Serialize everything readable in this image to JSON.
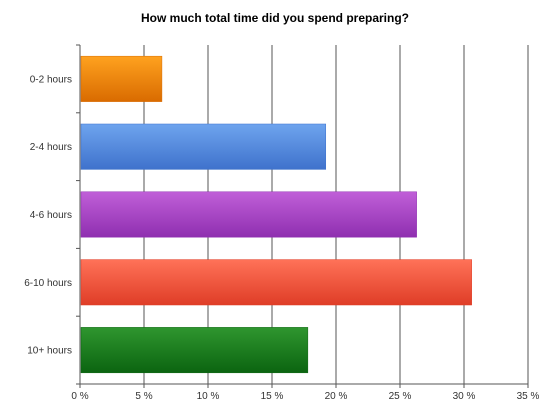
{
  "chart_data": {
    "type": "bar",
    "orientation": "horizontal",
    "title": "How much total time did you spend preparing?",
    "xlabel": "",
    "ylabel": "",
    "categories": [
      "0-2 hours",
      "2-4 hours",
      "4-6 hours",
      "6-10 hours",
      "10+ hours"
    ],
    "values": [
      6.4,
      19.2,
      26.3,
      30.6,
      17.8
    ],
    "value_unit": "%",
    "xlim": [
      0,
      35
    ],
    "x_ticks": [
      0,
      5,
      10,
      15,
      20,
      25,
      30,
      35
    ],
    "x_tick_labels": [
      "0 %",
      "5 %",
      "10 %",
      "15 %",
      "20 %",
      "25 %",
      "30 %",
      "35 %"
    ],
    "grid": true,
    "legend": "none",
    "bar_colors": [
      {
        "light": "#ffa21f",
        "dark": "#d96b00"
      },
      {
        "light": "#6ea4ee",
        "dark": "#3f72cc"
      },
      {
        "light": "#c05fd8",
        "dark": "#8f2fb0"
      },
      {
        "light": "#ff7258",
        "dark": "#df3d27"
      },
      {
        "light": "#2f962f",
        "dark": "#0b6410"
      }
    ]
  }
}
